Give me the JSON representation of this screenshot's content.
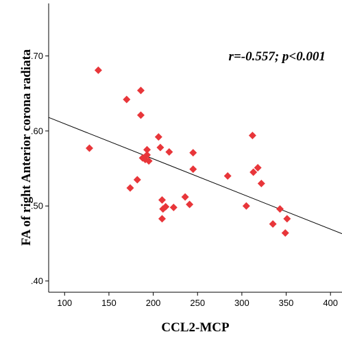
{
  "chart_data": {
    "type": "scatter",
    "xlabel": "CCL2-MCP",
    "ylabel": "FA of right Anterior corona radiata",
    "annotation": "r=-0.557; p<0.001",
    "xlim": [
      82,
      413
    ],
    "ylim": [
      0.385,
      0.77
    ],
    "xticks": [
      {
        "value": 100,
        "label": "100"
      },
      {
        "value": 150,
        "label": "150"
      },
      {
        "value": 200,
        "label": "200"
      },
      {
        "value": 250,
        "label": "250"
      },
      {
        "value": 300,
        "label": "300"
      },
      {
        "value": 350,
        "label": "350"
      },
      {
        "value": 400,
        "label": "400"
      }
    ],
    "yticks": [
      {
        "value": 0.4,
        "label": ".40"
      },
      {
        "value": 0.5,
        "label": ".50"
      },
      {
        "value": 0.6,
        "label": ".60"
      },
      {
        "value": 0.7,
        "label": ".70"
      }
    ],
    "grid": false,
    "marker_color": "#e8363a",
    "fit_line": {
      "x": [
        82,
        413
      ],
      "y": [
        0.618,
        0.463
      ]
    },
    "points": [
      {
        "x": 128,
        "y": 0.577
      },
      {
        "x": 138,
        "y": 0.681
      },
      {
        "x": 170,
        "y": 0.642
      },
      {
        "x": 174,
        "y": 0.524
      },
      {
        "x": 182,
        "y": 0.535
      },
      {
        "x": 186,
        "y": 0.654
      },
      {
        "x": 186,
        "y": 0.621
      },
      {
        "x": 188,
        "y": 0.564
      },
      {
        "x": 191,
        "y": 0.562
      },
      {
        "x": 193,
        "y": 0.575
      },
      {
        "x": 193,
        "y": 0.568
      },
      {
        "x": 195,
        "y": 0.56
      },
      {
        "x": 206,
        "y": 0.592
      },
      {
        "x": 208,
        "y": 0.578
      },
      {
        "x": 210,
        "y": 0.508
      },
      {
        "x": 210,
        "y": 0.483
      },
      {
        "x": 211,
        "y": 0.496
      },
      {
        "x": 214,
        "y": 0.499
      },
      {
        "x": 218,
        "y": 0.572
      },
      {
        "x": 223,
        "y": 0.498
      },
      {
        "x": 236,
        "y": 0.512
      },
      {
        "x": 241,
        "y": 0.502
      },
      {
        "x": 245,
        "y": 0.571
      },
      {
        "x": 245,
        "y": 0.549
      },
      {
        "x": 284,
        "y": 0.54
      },
      {
        "x": 305,
        "y": 0.5
      },
      {
        "x": 312,
        "y": 0.594
      },
      {
        "x": 313,
        "y": 0.545
      },
      {
        "x": 318,
        "y": 0.551
      },
      {
        "x": 322,
        "y": 0.53
      },
      {
        "x": 335,
        "y": 0.476
      },
      {
        "x": 343,
        "y": 0.496
      },
      {
        "x": 349,
        "y": 0.464
      },
      {
        "x": 351,
        "y": 0.483
      }
    ]
  }
}
